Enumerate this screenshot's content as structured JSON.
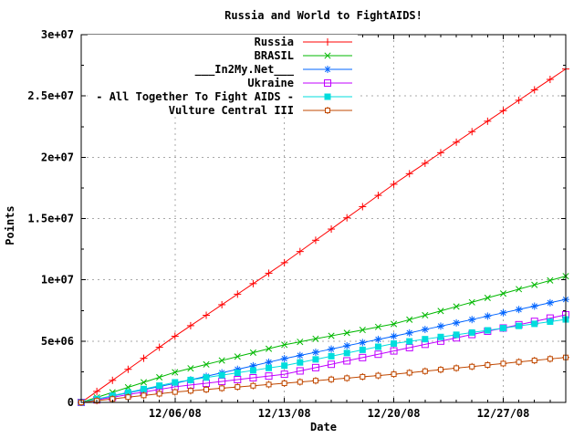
{
  "title": "Russia and World to FightAIDS!",
  "colors": {
    "background": "#ffffff",
    "border": "#000000",
    "grid": "#a8a8a8",
    "text": "#000000"
  },
  "y_axis": {
    "label": "Points",
    "tick_labels": [
      "0",
      "5e+06",
      "1e+07",
      "1.5e+07",
      "2e+07",
      "2.5e+07",
      "3e+07"
    ],
    "tick_values_millions": [
      0,
      5,
      10,
      15,
      20,
      25,
      30
    ]
  },
  "x_axis": {
    "label": "Date",
    "tick_labels": [
      "12/06/08",
      "12/13/08",
      "12/20/08",
      "12/27/08"
    ],
    "tick_day_indices": [
      6,
      13,
      20,
      27
    ]
  },
  "chart_data": {
    "type": "line",
    "title": "Russia and World to FightAIDS!",
    "xlabel": "Date",
    "ylabel": "Points",
    "ylim": [
      0,
      30000000
    ],
    "grid": true,
    "legend_position": "top-center-inside-opaque",
    "values_unit": "millions of points (multiply by 1e6)",
    "x": [
      "11/30/08",
      "12/01/08",
      "12/02/08",
      "12/03/08",
      "12/04/08",
      "12/05/08",
      "12/06/08",
      "12/07/08",
      "12/08/08",
      "12/09/08",
      "12/10/08",
      "12/11/08",
      "12/12/08",
      "12/13/08",
      "12/14/08",
      "12/15/08",
      "12/16/08",
      "12/17/08",
      "12/18/08",
      "12/19/08",
      "12/20/08",
      "12/21/08",
      "12/22/08",
      "12/23/08",
      "12/24/08",
      "12/25/08",
      "12/26/08",
      "12/27/08",
      "12/28/08",
      "12/29/08",
      "12/30/08",
      "12/31/08"
    ],
    "series": [
      {
        "name": "Russia",
        "color": "#ff0000",
        "marker": "plus",
        "values": [
          0,
          0.9,
          1.8,
          2.7,
          3.6,
          4.5,
          5.4,
          6.26,
          7.11,
          7.97,
          8.83,
          9.69,
          10.54,
          11.4,
          12.31,
          13.23,
          14.14,
          15.06,
          15.97,
          16.89,
          17.8,
          18.66,
          19.51,
          20.37,
          21.23,
          22.09,
          22.94,
          23.8,
          24.65,
          25.5,
          26.35,
          27.2
        ]
      },
      {
        "name": "BRASIL",
        "color": "#00b800",
        "marker": "cross",
        "values": [
          0,
          0.41,
          0.82,
          1.23,
          1.64,
          2.05,
          2.46,
          2.78,
          3.1,
          3.42,
          3.74,
          4.06,
          4.38,
          4.7,
          4.94,
          5.19,
          5.43,
          5.67,
          5.91,
          6.16,
          6.4,
          6.75,
          7.11,
          7.46,
          7.82,
          8.17,
          8.53,
          8.88,
          9.24,
          9.59,
          9.95,
          10.3
        ]
      },
      {
        "name": "___In2My.Net___",
        "color": "#0064ff",
        "marker": "star",
        "values": [
          0,
          0.26,
          0.52,
          0.78,
          1.03,
          1.29,
          1.55,
          1.84,
          2.13,
          2.42,
          2.7,
          2.99,
          3.28,
          3.57,
          3.83,
          4.09,
          4.35,
          4.62,
          4.88,
          5.14,
          5.4,
          5.67,
          5.95,
          6.22,
          6.49,
          6.76,
          7.04,
          7.31,
          7.58,
          7.85,
          8.13,
          8.4
        ]
      },
      {
        "name": "Ukraine",
        "color": "#c000ff",
        "marker": "open-square",
        "values": [
          0,
          0.21,
          0.42,
          0.64,
          0.85,
          1.06,
          1.27,
          1.42,
          1.56,
          1.71,
          1.86,
          2.01,
          2.15,
          2.3,
          2.57,
          2.84,
          3.11,
          3.39,
          3.66,
          3.93,
          4.2,
          4.47,
          4.74,
          5.0,
          5.27,
          5.54,
          5.81,
          6.07,
          6.34,
          6.61,
          6.88,
          7.15
        ]
      },
      {
        "name": "- All Together To Fight AIDS -",
        "color": "#00dddd",
        "marker": "filled-square",
        "values": [
          0,
          0.27,
          0.55,
          0.82,
          1.09,
          1.37,
          1.64,
          1.83,
          2.03,
          2.22,
          2.42,
          2.61,
          2.81,
          3.0,
          3.26,
          3.51,
          3.77,
          4.03,
          4.29,
          4.54,
          4.8,
          4.98,
          5.16,
          5.34,
          5.52,
          5.7,
          5.88,
          6.06,
          6.24,
          6.41,
          6.59,
          6.77
        ]
      },
      {
        "name": "Vulture Central III",
        "color": "#c04800",
        "marker": "square-plus",
        "values": [
          0,
          0.14,
          0.28,
          0.43,
          0.57,
          0.71,
          0.85,
          0.95,
          1.05,
          1.16,
          1.26,
          1.36,
          1.46,
          1.56,
          1.67,
          1.77,
          1.88,
          1.98,
          2.09,
          2.19,
          2.3,
          2.42,
          2.55,
          2.67,
          2.8,
          2.92,
          3.05,
          3.17,
          3.3,
          3.42,
          3.55,
          3.67
        ]
      }
    ]
  }
}
